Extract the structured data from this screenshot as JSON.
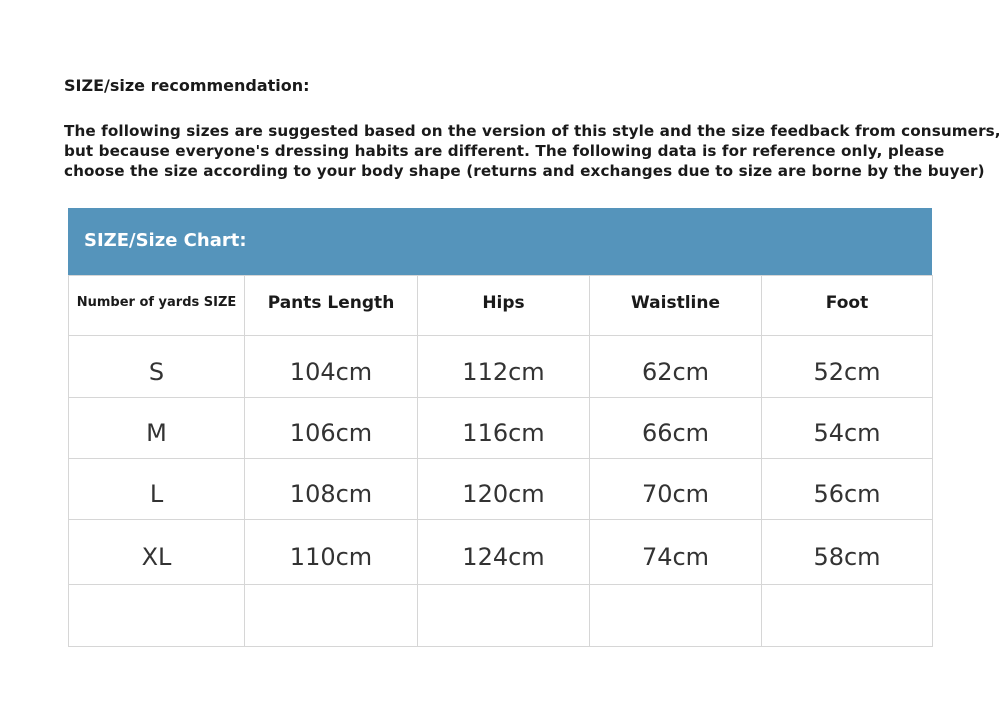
{
  "title": "SIZE/size recommendation:",
  "intro_lines": [
    "The following sizes are suggested based on the version of this style and the size feedback from consumers,",
    "but because everyone's dressing habits are different. The following data is for reference only, please",
    "choose the size according to your body shape (returns and exchanges due to size are borne by the buyer)"
  ],
  "accent_color": "#5594bb",
  "table": {
    "banner": "SIZE/Size Chart:",
    "headers": [
      "Number of yards SIZE",
      "Pants Length",
      "Hips",
      "Waistline",
      "Foot"
    ],
    "rows": [
      [
        "S",
        "104cm",
        "112cm",
        "62cm",
        "52cm"
      ],
      [
        "M",
        "106cm",
        "116cm",
        "66cm",
        "54cm"
      ],
      [
        "L",
        "108cm",
        "120cm",
        "70cm",
        "56cm"
      ],
      [
        "XL",
        "110cm",
        "124cm",
        "74cm",
        "58cm"
      ],
      [
        "",
        "",
        "",
        "",
        ""
      ]
    ]
  }
}
